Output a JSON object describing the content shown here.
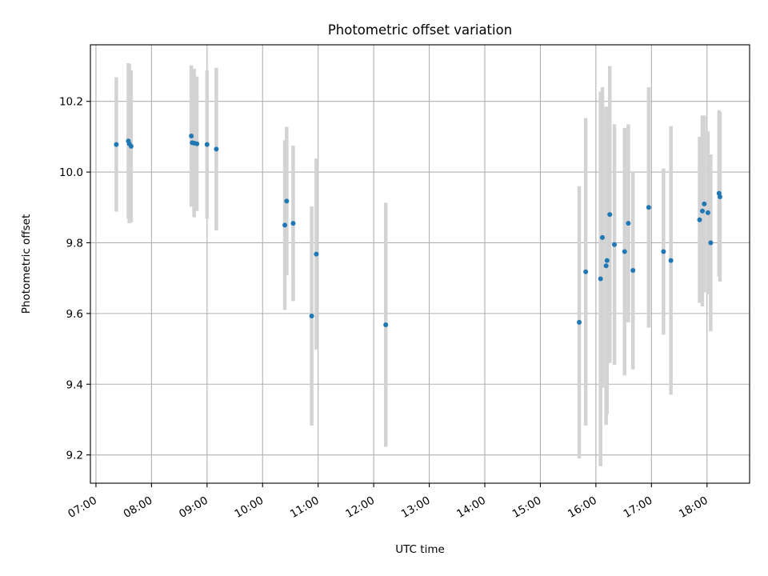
{
  "chart_data": {
    "type": "scatter",
    "title": "Photometric offset variation",
    "xlabel": "UTC time",
    "ylabel": "Photometric offset",
    "x_ticks": [
      "07:00",
      "08:00",
      "09:00",
      "10:00",
      "11:00",
      "12:00",
      "13:00",
      "14:00",
      "15:00",
      "16:00",
      "17:00",
      "18:00"
    ],
    "y_ticks": [
      "9.2",
      "9.4",
      "9.6",
      "9.8",
      "10.0",
      "10.2"
    ],
    "xlim": [
      "06:54",
      "18:46"
    ],
    "ylim": [
      9.12,
      10.36
    ],
    "grid": true,
    "legend": "none",
    "colors": {
      "point": "#1f77b4",
      "errorbar": "#d3d3d3",
      "grid": "#b0b0b0"
    },
    "points": [
      {
        "x": "07:22",
        "y": 10.078,
        "err": 0.19
      },
      {
        "x": "07:35",
        "y": 10.088,
        "err": 0.22
      },
      {
        "x": "07:36",
        "y": 10.08,
        "err": 0.225
      },
      {
        "x": "07:38",
        "y": 10.073,
        "err": 0.215
      },
      {
        "x": "08:43",
        "y": 10.102,
        "err": 0.2
      },
      {
        "x": "08:44",
        "y": 10.083,
        "err": 0.18
      },
      {
        "x": "08:46",
        "y": 10.082,
        "err": 0.21
      },
      {
        "x": "08:49",
        "y": 10.08,
        "err": 0.19
      },
      {
        "x": "09:00",
        "y": 10.078,
        "err": 0.21
      },
      {
        "x": "09:10",
        "y": 10.065,
        "err": 0.23
      },
      {
        "x": "10:24",
        "y": 9.85,
        "err": 0.24
      },
      {
        "x": "10:26",
        "y": 9.918,
        "err": 0.21
      },
      {
        "x": "10:33",
        "y": 9.855,
        "err": 0.22
      },
      {
        "x": "10:53",
        "y": 9.593,
        "err": 0.31
      },
      {
        "x": "10:58",
        "y": 9.768,
        "err": 0.27
      },
      {
        "x": "12:13",
        "y": 9.568,
        "err": 0.345
      },
      {
        "x": "15:42",
        "y": 9.575,
        "err": 0.385
      },
      {
        "x": "15:49",
        "y": 9.718,
        "err": 0.435
      },
      {
        "x": "16:05",
        "y": 9.698,
        "err": 0.53
      },
      {
        "x": "16:07",
        "y": 9.815,
        "err": 0.425
      },
      {
        "x": "16:11",
        "y": 9.735,
        "err": 0.45
      },
      {
        "x": "16:12",
        "y": 9.75,
        "err": 0.435
      },
      {
        "x": "16:15",
        "y": 9.88,
        "err": 0.42
      },
      {
        "x": "16:20",
        "y": 9.795,
        "err": 0.34
      },
      {
        "x": "16:31",
        "y": 9.775,
        "err": 0.35
      },
      {
        "x": "16:35",
        "y": 9.855,
        "err": 0.28
      },
      {
        "x": "16:40",
        "y": 9.722,
        "err": 0.28
      },
      {
        "x": "16:57",
        "y": 9.9,
        "err": 0.34
      },
      {
        "x": "17:13",
        "y": 9.775,
        "err": 0.235
      },
      {
        "x": "17:21",
        "y": 9.75,
        "err": 0.38
      },
      {
        "x": "17:52",
        "y": 9.865,
        "err": 0.235
      },
      {
        "x": "17:55",
        "y": 9.89,
        "err": 0.27
      },
      {
        "x": "17:57",
        "y": 9.91,
        "err": 0.25
      },
      {
        "x": "18:01",
        "y": 9.885,
        "err": 0.23
      },
      {
        "x": "18:04",
        "y": 9.8,
        "err": 0.25
      },
      {
        "x": "18:13",
        "y": 9.94,
        "err": 0.235
      },
      {
        "x": "18:14",
        "y": 9.93,
        "err": 0.24
      }
    ]
  }
}
